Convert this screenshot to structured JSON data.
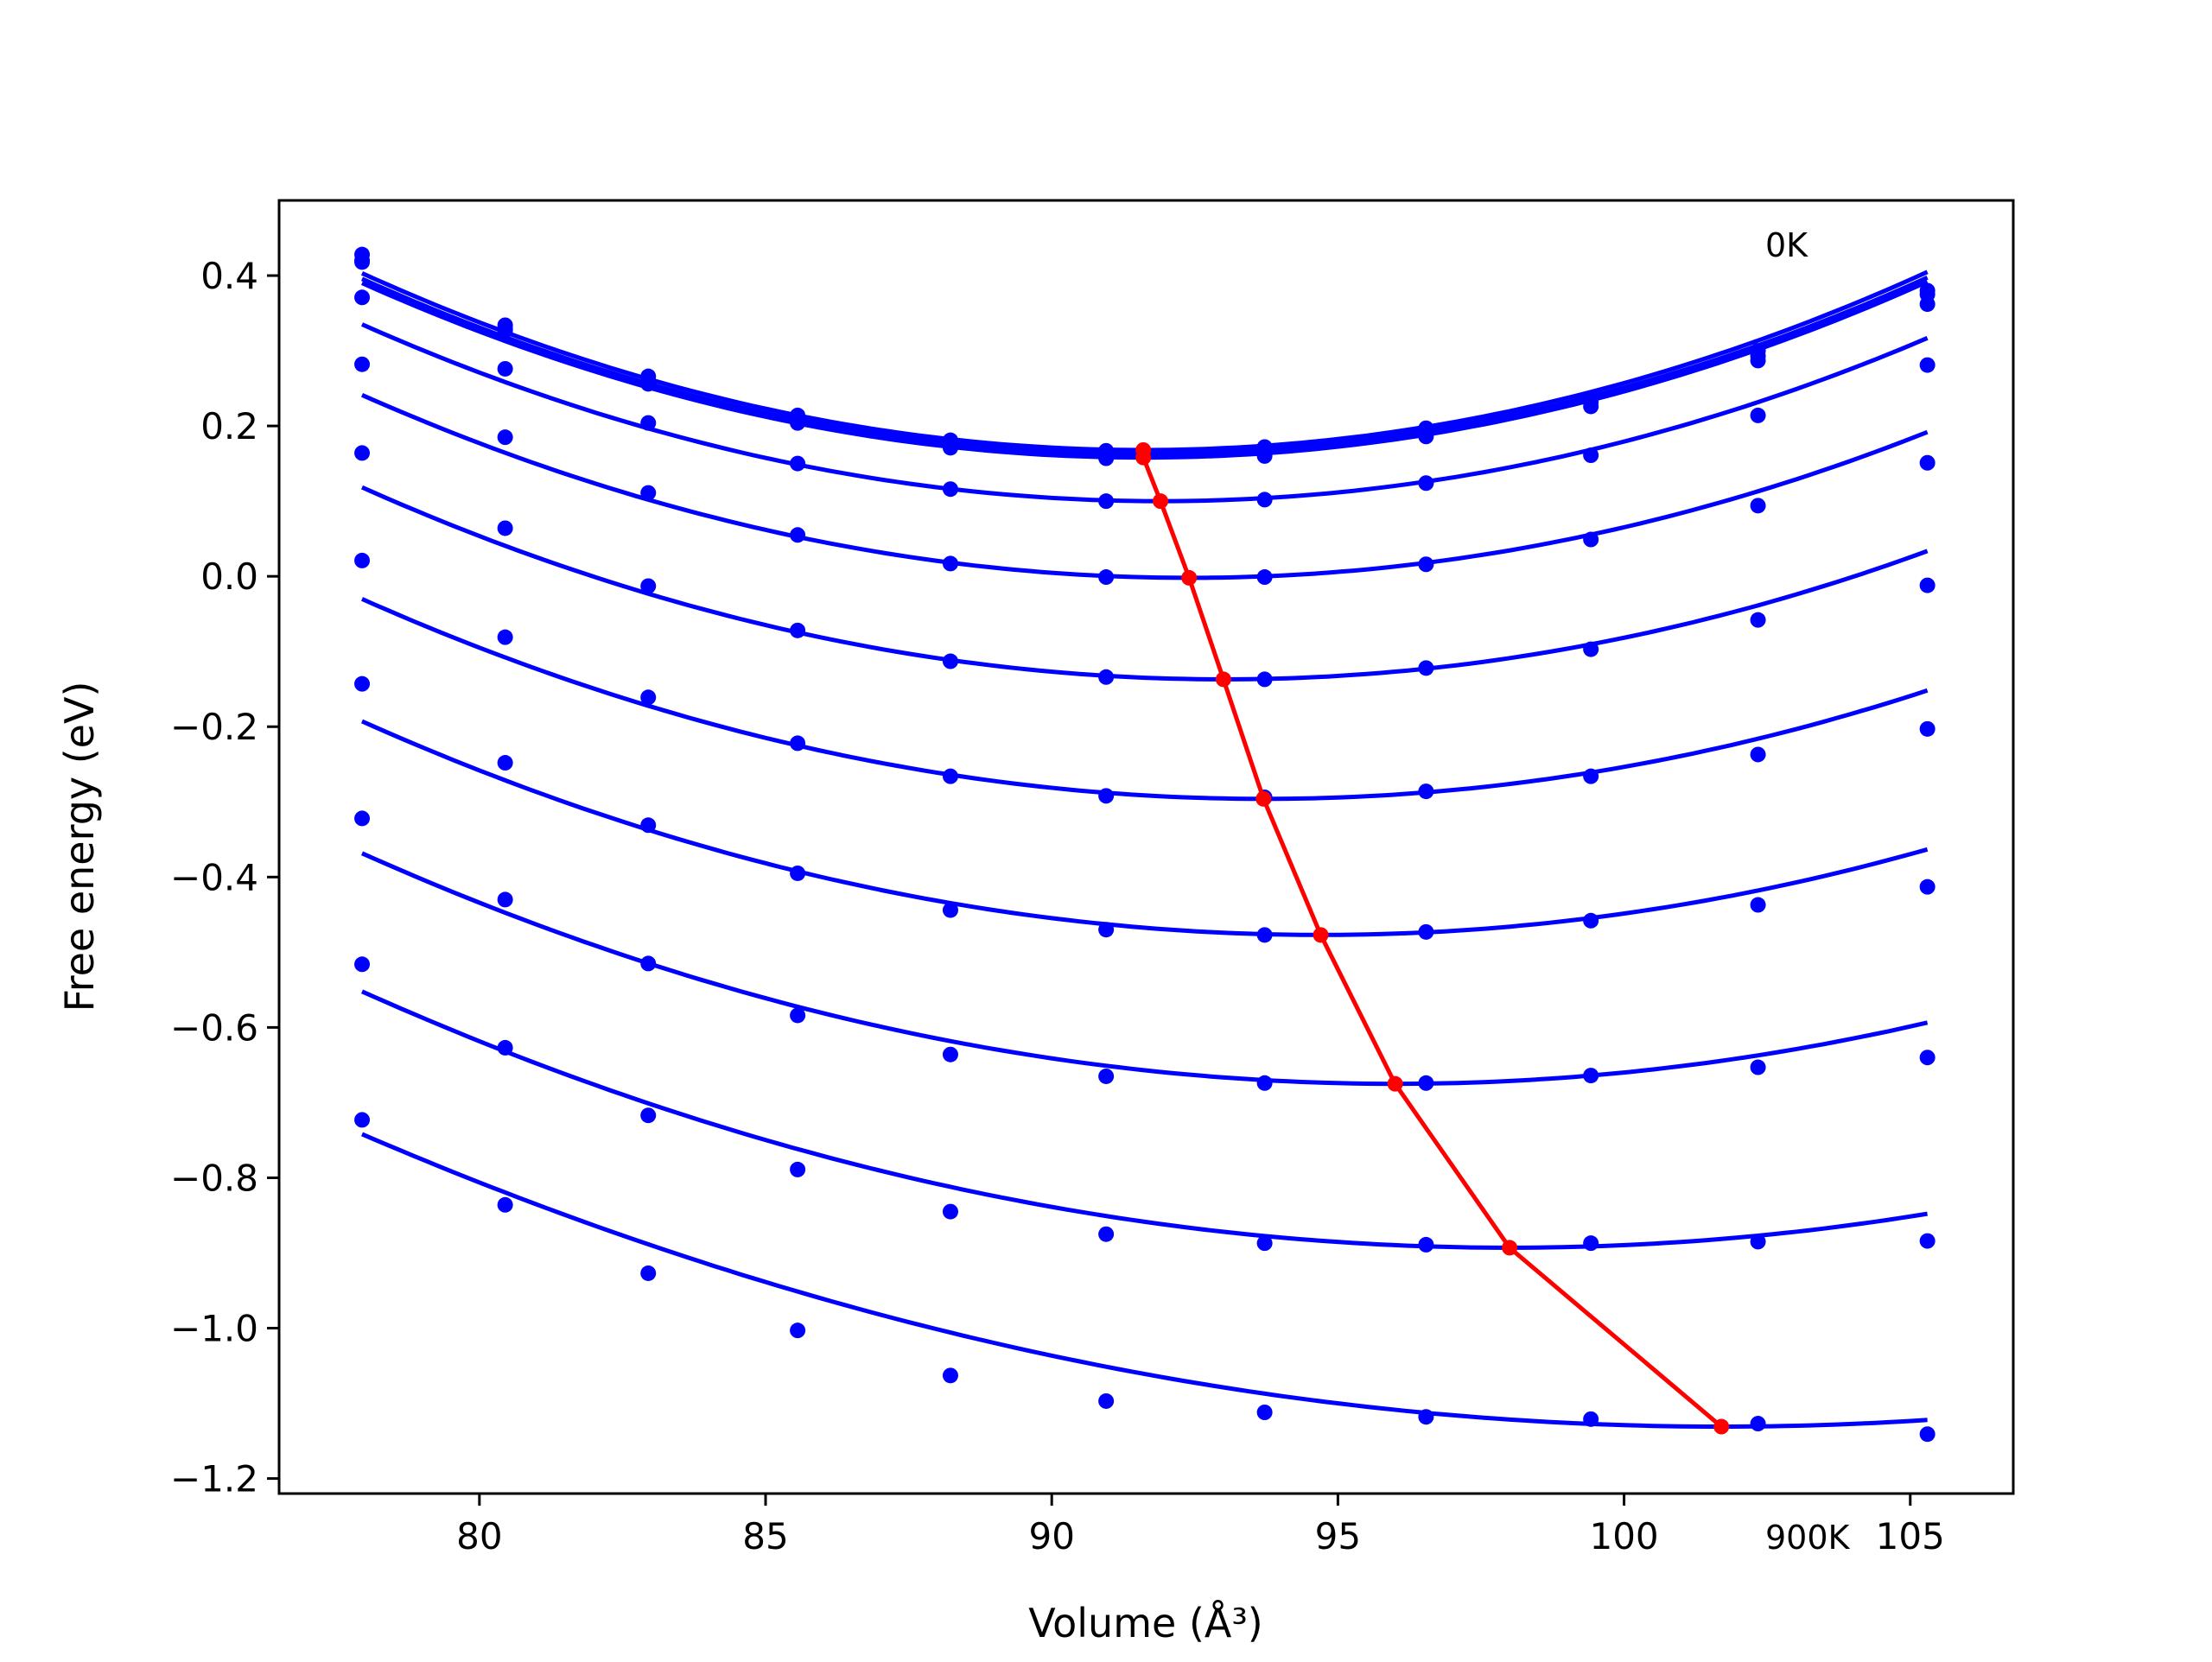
{
  "chart_data": {
    "type": "line",
    "title": "",
    "xlabel": "Volume (Å³)",
    "ylabel": "Free energy (eV)",
    "xlim": [
      76.5,
      106.8
    ],
    "ylim": [
      -1.22,
      0.5
    ],
    "xticks": [
      80,
      85,
      90,
      95,
      100,
      105
    ],
    "xtick_labels": [
      "80",
      "85",
      "90",
      "95",
      "100",
      "105"
    ],
    "yticks": [
      0.4,
      0.2,
      0.0,
      -0.2,
      -0.4,
      -0.6,
      -0.8,
      -1.0,
      -1.2
    ],
    "ytick_labels": [
      "0.4",
      "0.2",
      "0.0",
      "−0.2",
      "−0.4",
      "−0.6",
      "−0.8",
      "−1.0",
      "−1.2"
    ],
    "grid": false,
    "legend": "none",
    "annotations": [
      {
        "text": "0K",
        "x": 102.5,
        "y": 0.44
      },
      {
        "text": "900K",
        "x": 102.4,
        "y": -1.78
      }
    ],
    "x": [
      77.95,
      80.45,
      82.95,
      85.56,
      88.23,
      90.95,
      93.72,
      96.54,
      99.42,
      102.34,
      105.3
    ],
    "series": [
      {
        "values": [
          0.428,
          0.334,
          0.266,
          0.214,
          0.181,
          0.167,
          0.172,
          0.197,
          0.237,
          0.3,
          0.38
        ],
        "fit": {
          "min_x": 91.6,
          "min_y": 0.168
        }
      },
      {
        "values": [
          0.418,
          0.329,
          0.26,
          0.21,
          0.176,
          0.162,
          0.166,
          0.192,
          0.232,
          0.293,
          0.375
        ],
        "fit": {
          "min_x": 91.6,
          "min_y": 0.163
        }
      },
      {
        "values": [
          0.42,
          0.327,
          0.256,
          0.204,
          0.171,
          0.157,
          0.16,
          0.186,
          0.226,
          0.287,
          0.362
        ],
        "fit": {
          "min_x": 91.6,
          "min_y": 0.158
        }
      },
      {
        "values": [
          0.371,
          0.276,
          0.204,
          0.15,
          0.116,
          0.1,
          0.102,
          0.124,
          0.161,
          0.214,
          0.281
        ],
        "fit": {
          "min_x": 91.9,
          "min_y": 0.1
        }
      },
      {
        "values": [
          0.282,
          0.185,
          0.111,
          0.055,
          0.017,
          -0.001,
          -0.001,
          0.016,
          0.049,
          0.094,
          0.151
        ],
        "fit": {
          "min_x": 92.4,
          "min_y": -0.002
        }
      },
      {
        "values": [
          0.164,
          0.064,
          -0.013,
          -0.072,
          -0.113,
          -0.134,
          -0.137,
          -0.122,
          -0.097,
          -0.058,
          -0.012
        ],
        "fit": {
          "min_x": 93.0,
          "min_y": -0.137
        }
      },
      {
        "values": [
          0.021,
          -0.081,
          -0.161,
          -0.222,
          -0.266,
          -0.292,
          -0.294,
          -0.286,
          -0.266,
          -0.237,
          -0.203
        ],
        "fit": {
          "min_x": 93.7,
          "min_y": -0.296
        }
      },
      {
        "values": [
          -0.143,
          -0.248,
          -0.331,
          -0.395,
          -0.444,
          -0.47,
          -0.477,
          -0.473,
          -0.458,
          -0.437,
          -0.413
        ],
        "fit": {
          "min_x": 94.7,
          "min_y": -0.477
        }
      },
      {
        "values": [
          -0.322,
          -0.43,
          -0.515,
          -0.584,
          -0.636,
          -0.665,
          -0.674,
          -0.674,
          -0.664,
          -0.653,
          -0.64
        ],
        "fit": {
          "min_x": 96.0,
          "min_y": -0.675
        }
      },
      {
        "values": [
          -0.516,
          -0.627,
          -0.717,
          -0.789,
          -0.845,
          -0.875,
          -0.887,
          -0.889,
          -0.887,
          -0.885,
          -0.884
        ],
        "fit": {
          "min_x": 98.0,
          "min_y": -0.893
        }
      },
      {
        "values": [
          -0.723,
          -0.836,
          -0.927,
          -1.003,
          -1.063,
          -1.097,
          -1.112,
          -1.118,
          -1.121,
          -1.127,
          -1.141
        ],
        "fit": {
          "min_x": 101.7,
          "min_y": -1.131
        }
      }
    ],
    "minimum_line": {
      "x": [
        91.6,
        91.6,
        91.9,
        92.4,
        93.0,
        93.7,
        94.7,
        96.0,
        98.0,
        101.7
      ],
      "y": [
        0.168,
        0.158,
        0.1,
        -0.002,
        -0.137,
        -0.296,
        -0.477,
        -0.675,
        -0.893,
        -1.131
      ]
    },
    "colors": {
      "curves": "#0000ff",
      "minimum_line": "#ff0000",
      "axes": "#000000"
    }
  }
}
